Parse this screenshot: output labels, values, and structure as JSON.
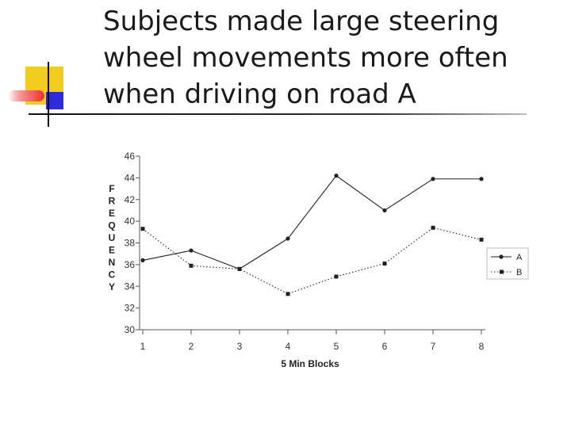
{
  "slide": {
    "title": "Subjects made large steering\nwheel movements more often\nwhen driving on road A"
  },
  "colors": {
    "accent_yellow": "#f2cc1e",
    "accent_blue": "#2d2bd9",
    "accent_red": "#ee2e2e",
    "series_line": "#222222",
    "grid": "#999999"
  },
  "chart_data": {
    "type": "line",
    "xlabel": "5 Min Blocks",
    "ylabel": "FREQUENCY",
    "categories": [
      "1",
      "2",
      "3",
      "4",
      "5",
      "6",
      "7",
      "8"
    ],
    "ylim": [
      30,
      46
    ],
    "yticks": [
      30,
      32,
      34,
      36,
      38,
      40,
      42,
      44,
      46
    ],
    "grid": false,
    "legend": "right",
    "series": [
      {
        "name": "A",
        "style": "solid",
        "marker": "circle",
        "values": [
          36.4,
          37.3,
          35.6,
          38.4,
          44.2,
          41.0,
          43.9,
          43.9
        ]
      },
      {
        "name": "B",
        "style": "dotted",
        "marker": "square",
        "values": [
          39.3,
          35.9,
          35.6,
          33.3,
          34.9,
          36.1,
          39.4,
          38.3
        ]
      }
    ]
  }
}
